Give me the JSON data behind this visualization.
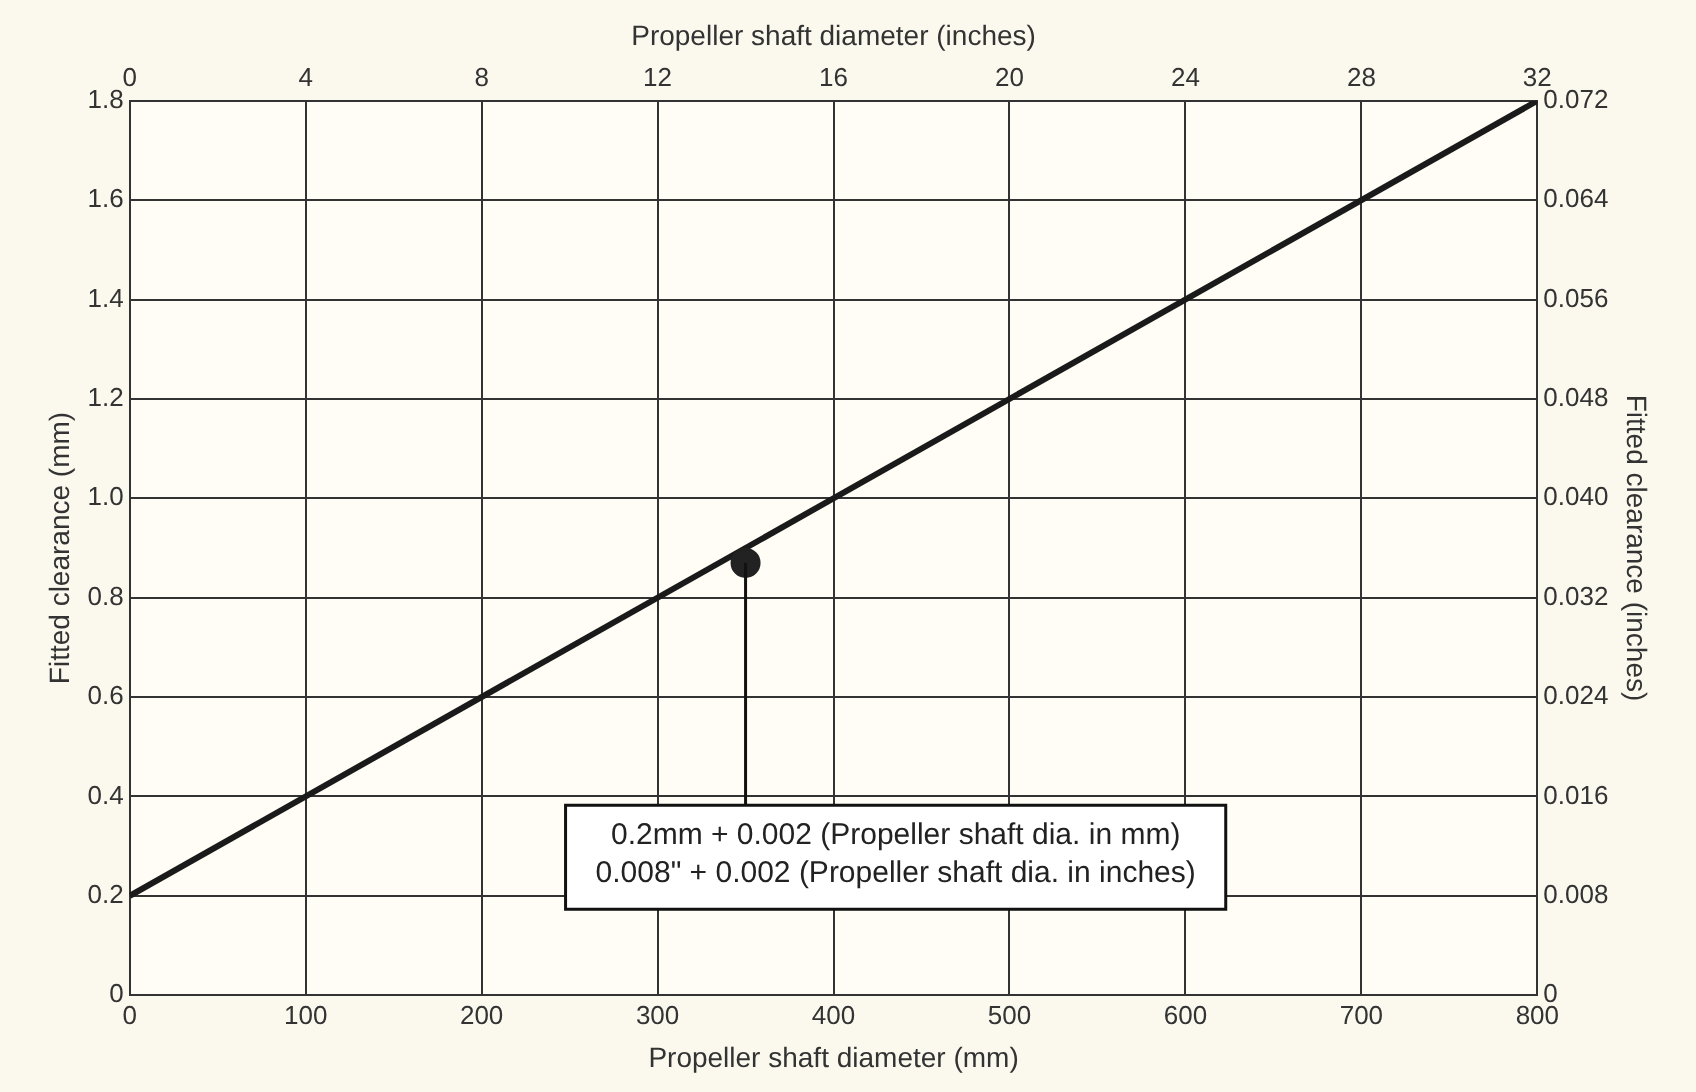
{
  "chart_data": {
    "type": "line",
    "xlabel": "Propeller shaft diameter (mm)",
    "x2label": "Propeller shaft diameter (inches)",
    "ylabel": "Fitted clearance (mm)",
    "y2label": "Fitted clearance (inches)",
    "xlim": [
      0,
      800
    ],
    "xticks": [
      0,
      100,
      200,
      300,
      400,
      500,
      600,
      700,
      800
    ],
    "x2lim": [
      0,
      32
    ],
    "x2ticks": [
      0,
      4,
      8,
      12,
      16,
      20,
      24,
      28,
      32
    ],
    "ylim": [
      0,
      1.8
    ],
    "yticks": [
      0,
      0.2,
      0.4,
      0.6,
      0.8,
      {
        "value": 1,
        "label": "1.0"
      },
      1.2,
      1.4,
      1.6,
      1.8
    ],
    "y2lim": [
      0,
      0.072
    ],
    "y2ticks": [
      0,
      0.008,
      0.016,
      0.024,
      0.032,
      {
        "value": 0.04,
        "label": "0.040"
      },
      0.048,
      0.056,
      0.064,
      0.072
    ],
    "grid": true,
    "legend": false,
    "series": [
      {
        "color": "#1a1a1a",
        "x": [
          0,
          800
        ],
        "values": [
          0.2,
          1.8
        ],
        "marker": "none"
      },
      {
        "type": "scatter",
        "color": "#222222",
        "x": [
          350
        ],
        "values": [
          0.87
        ],
        "marker": "circle"
      }
    ],
    "annotations": [
      {
        "text": "0.2mm + 0.002 (Propeller shaft dia. in mm)\n0.008\" + 0.002 (Propeller shaft dia. in inches)",
        "x": 350,
        "y": 0.87
      }
    ]
  }
}
